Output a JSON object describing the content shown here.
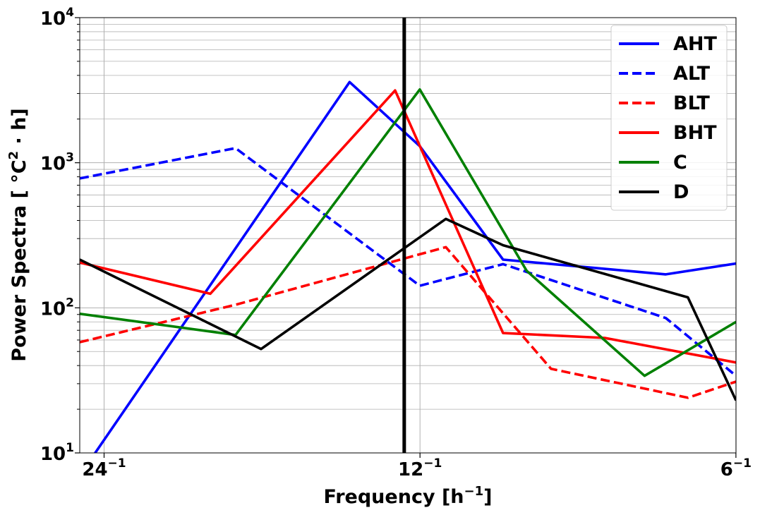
{
  "chart_data": {
    "type": "line",
    "xlabel": "Frequency [h",
    "xlabel_sup": "−1",
    "xlabel_close": "]",
    "ylabel": "Power Spectra [ °C",
    "ylabel_sup": "2",
    "ylabel_tail": " · h]",
    "x_scale": "log",
    "y_scale": "log",
    "xlim": [
      0.0395,
      0.1667
    ],
    "ylim": [
      10,
      10000
    ],
    "grid": true,
    "legend_position": "top-right",
    "x_ticks": [
      {
        "value": 0.041667,
        "base": "24",
        "exp": "−1"
      },
      {
        "value": 0.083333,
        "base": "12",
        "exp": "−1"
      },
      {
        "value": 0.166667,
        "base": "6",
        "exp": "−1"
      }
    ],
    "y_ticks": [
      {
        "value": 10,
        "base": "10",
        "exp": "1"
      },
      {
        "value": 100,
        "base": "10",
        "exp": "2"
      },
      {
        "value": 1000,
        "base": "10",
        "exp": "3"
      },
      {
        "value": 10000,
        "base": "10",
        "exp": "4"
      }
    ],
    "vline": {
      "x": 0.0805,
      "color": "#000000"
    },
    "series": [
      {
        "name": "AHT",
        "color": "#0000ff",
        "dash": false,
        "points": [
          [
            0.0395,
            7
          ],
          [
            0.0714,
            3600
          ],
          [
            0.0833,
            1300
          ],
          [
            0.1,
            215
          ],
          [
            0.1429,
            170
          ],
          [
            0.1667,
            202
          ]
        ]
      },
      {
        "name": "ALT",
        "color": "#0000ff",
        "dash": true,
        "points": [
          [
            0.0395,
            780
          ],
          [
            0.0556,
            1260
          ],
          [
            0.0833,
            142
          ],
          [
            0.1,
            200
          ],
          [
            0.1429,
            85
          ],
          [
            0.1667,
            34
          ]
        ]
      },
      {
        "name": "BLT",
        "color": "#ff0000",
        "dash": true,
        "points": [
          [
            0.0395,
            58
          ],
          [
            0.0556,
            105
          ],
          [
            0.0882,
            262
          ],
          [
            0.1111,
            38
          ],
          [
            0.15,
            24
          ],
          [
            0.1667,
            31
          ]
        ]
      },
      {
        "name": "BHT",
        "color": "#ff0000",
        "dash": false,
        "points": [
          [
            0.0395,
            205
          ],
          [
            0.0526,
            125
          ],
          [
            0.0789,
            3150
          ],
          [
            0.1,
            67
          ],
          [
            0.125,
            62
          ],
          [
            0.1667,
            42
          ]
        ]
      },
      {
        "name": "C",
        "color": "#008000",
        "dash": false,
        "points": [
          [
            0.0395,
            91
          ],
          [
            0.0556,
            65
          ],
          [
            0.0833,
            3200
          ],
          [
            0.1053,
            180
          ],
          [
            0.1364,
            34
          ],
          [
            0.1667,
            80
          ]
        ]
      },
      {
        "name": "D",
        "color": "#000000",
        "dash": false,
        "points": [
          [
            0.0395,
            215
          ],
          [
            0.0588,
            52
          ],
          [
            0.0882,
            410
          ],
          [
            0.1,
            270
          ],
          [
            0.15,
            118
          ],
          [
            0.1667,
            23
          ]
        ]
      }
    ]
  }
}
